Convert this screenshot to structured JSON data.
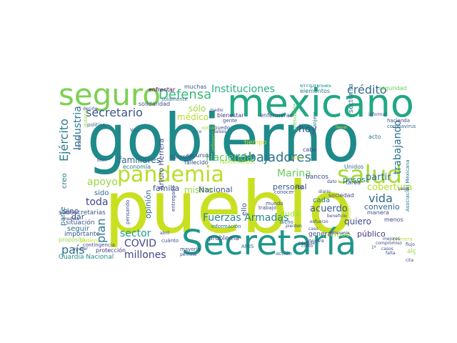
{
  "words": [
    {
      "text": "pueblo",
      "color": "#c8e020"
    },
    {
      "text": "gobierno",
      "color": "#1f8a8a"
    },
    {
      "text": "mexicano",
      "color": "#22a784"
    },
    {
      "text": "Secretaría",
      "color": "#1f968b"
    },
    {
      "text": "seguro",
      "color": "#7ad151"
    },
    {
      "text": "pandemia",
      "color": "#b8de29"
    },
    {
      "text": "salud",
      "color": "#a5db36"
    },
    {
      "text": "trabajadores",
      "color": "#2c728e"
    },
    {
      "text": "Defensa",
      "color": "#35b779"
    },
    {
      "text": "Instituciones",
      "color": "#29af7f"
    },
    {
      "text": "crédito",
      "color": "#31688e"
    },
    {
      "text": "secretario",
      "color": "#3b528b"
    },
    {
      "text": "Ejército",
      "color": "#2a788e"
    },
    {
      "text": "Marina",
      "color": "#6ccd5a"
    },
    {
      "text": "Hacienda",
      "color": "#5ec962"
    },
    {
      "text": "Fuerzas Armadas",
      "color": "#26828e"
    },
    {
      "text": "COVID",
      "color": "#3e4989"
    },
    {
      "text": "millones",
      "color": "#414487"
    },
    {
      "text": "país",
      "color": "#2d708e"
    },
    {
      "text": "plan",
      "color": "#2a788e"
    },
    {
      "text": "sector",
      "color": "#1f9e89"
    },
    {
      "text": "vida",
      "color": "#306a8e"
    },
    {
      "text": "trabajando",
      "color": "#2c728e"
    },
    {
      "text": "hoy",
      "color": "#3b528b"
    },
    {
      "text": "apoyo",
      "color": "#95d840"
    },
    {
      "text": "toda",
      "color": "#3f4788"
    },
    {
      "text": "acuerdo",
      "color": "#39568c"
    },
    {
      "text": "cobertura",
      "color": "#b5de2b"
    },
    {
      "text": "partir",
      "color": "#2e6e8e"
    },
    {
      "text": "Industria",
      "color": "#2a788e"
    },
    {
      "text": "sólo",
      "color": "#9fda3a"
    },
    {
      "text": "médico",
      "color": "#b8de29"
    },
    {
      "text": "familiares",
      "color": "#31688e"
    },
    {
      "text": "mismo",
      "color": "#95d840"
    },
    {
      "text": "familia",
      "color": "#3a538b"
    },
    {
      "text": "Nacional",
      "color": "#3b528b"
    },
    {
      "text": "personal",
      "color": "#375a8c"
    },
    {
      "text": "pesos",
      "color": "#26828e"
    },
    {
      "text": "quiero",
      "color": "#3e4989"
    },
    {
      "text": "público",
      "color": "#46337e"
    },
    {
      "text": "convenio",
      "color": "#32658e"
    },
    {
      "text": "incluso",
      "color": "#a8db34"
    },
    {
      "text": "duda",
      "color": "#a5db36"
    },
    {
      "text": "opinión",
      "color": "#33638d"
    },
    {
      "text": "dar",
      "color": "#3b528b"
    },
    {
      "text": "sido",
      "color": "#31688e"
    },
    {
      "text": "sino",
      "color": "#3e4989"
    },
    {
      "text": "creo",
      "color": "#2a788e"
    },
    {
      "text": "parte",
      "color": "#2c728e"
    },
    {
      "text": "seguir",
      "color": "#2d708e"
    },
    {
      "text": "situación",
      "color": "#3b528b"
    },
    {
      "text": "importante",
      "color": "#375a8c"
    },
    {
      "text": "subsecretarias",
      "color": "#39568c"
    },
    {
      "text": "Guardia Nacional",
      "color": "#228c8d"
    },
    {
      "text": "protección",
      "color": "#46337e"
    },
    {
      "text": "problema",
      "color": "#3e4989"
    },
    {
      "text": "Arturo Herrera",
      "color": "#3e4989"
    },
    {
      "text": "ello",
      "color": "#3b528b"
    },
    {
      "text": "cada",
      "color": "#2c728e"
    },
    {
      "text": "general",
      "color": "#3b528b"
    },
    {
      "text": "sector salud",
      "color": "#2c728e"
    },
    {
      "text": "bancos",
      "color": "#3e4989"
    },
    {
      "text": "empresas",
      "color": "#21918c"
    },
    {
      "text": "elementos",
      "color": "#2a788e"
    },
    {
      "text": "seguridad",
      "color": "#6ccd5a"
    },
    {
      "text": "muchas",
      "color": "#3b528b"
    },
    {
      "text": "enfrentar",
      "color": "#440154"
    },
    {
      "text": "solidaridad",
      "color": "#3e4989"
    },
    {
      "text": "recursos",
      "color": "#3e4989"
    },
    {
      "text": "bienestar",
      "color": "#443983"
    },
    {
      "text": "enfermeras",
      "color": "#3e4989"
    },
    {
      "text": "tiempo",
      "color": "#c8e020"
    },
    {
      "text": "decreto",
      "color": "#3b528b"
    },
    {
      "text": "fallecido",
      "color": "#3e4989"
    },
    {
      "text": "economía",
      "color": "#2a788e"
    },
    {
      "text": "vez",
      "color": "#2c728e"
    },
    {
      "text": "Unidos",
      "color": "#31688e"
    },
    {
      "text": "tarea",
      "color": "#3b528b"
    },
    {
      "text": "cabo",
      "color": "#3e4989"
    },
    {
      "text": "extranjero",
      "color": "#2a788e"
    },
    {
      "text": "acto",
      "color": "#2c728e"
    },
    {
      "text": "manera",
      "color": "#3b528b"
    },
    {
      "text": "menos",
      "color": "#3e4989"
    },
    {
      "text": "mundo",
      "color": "#3e4989"
    },
    {
      "text": "dicho",
      "color": "#31688e"
    },
    {
      "text": "conocer",
      "color": "#3e4989"
    },
    {
      "text": "sociedad",
      "color": "#3e4989"
    },
    {
      "text": "acción",
      "color": "#31688e"
    },
    {
      "text": "AMIS",
      "color": "#31688e"
    },
    {
      "text": "mayoría",
      "color": "#3e4989"
    },
    {
      "text": "información",
      "color": "#33638d"
    },
    {
      "text": "iba",
      "color": "#3e4989"
    },
    {
      "text": "trabajo",
      "color": "#3e4989"
    },
    {
      "text": "gente",
      "color": "#3e4989"
    },
    {
      "text": "puedo",
      "color": "#3b528b"
    },
    {
      "text": "cuánto",
      "color": "#3e4989"
    },
    {
      "text": "entregado",
      "color": "#3e4989"
    },
    {
      "text": "pensando",
      "color": "#3e4989"
    },
    {
      "text": "propósito",
      "color": "#95d840"
    },
    {
      "text": "Asociación Mexicana",
      "color": "#2a788e"
    },
    {
      "text": "coronavirus",
      "color": "#31688e"
    },
    {
      "text": "hacienda",
      "color": "#3e4989"
    },
    {
      "text": "nueva",
      "color": "#3e4989"
    },
    {
      "text": "presidente",
      "color": "#6ccd5a"
    },
    {
      "text": "fallecimientos",
      "color": "#a8db34"
    },
    {
      "text": "contingencia",
      "color": "#3e4989"
    },
    {
      "text": "política",
      "color": "#31688e"
    },
    {
      "text": "solamente",
      "color": "#2a788e"
    },
    {
      "text": "pudiera",
      "color": "#c8e020"
    },
    {
      "text": "cosas",
      "color": "#3e4989"
    },
    {
      "text": "refinería",
      "color": "#95d840"
    },
    {
      "text": "algún",
      "color": "#95d840"
    },
    {
      "text": "primera",
      "color": "#b5de2b"
    },
    {
      "text": "diario",
      "color": "#3e4989"
    },
    {
      "text": "costo",
      "color": "#3e4989"
    },
    {
      "text": "poder",
      "color": "#c8e020"
    },
    {
      "text": "hice",
      "color": "#2a788e"
    },
    {
      "text": "bien",
      "color": "#3e4989"
    },
    {
      "text": "social",
      "color": "#a5db36"
    },
    {
      "text": "esfuerzo",
      "color": "#3e4989"
    },
    {
      "text": "dato",
      "color": "#3e4989"
    },
    {
      "text": "medio",
      "color": "#3e4989"
    },
    {
      "text": "caso",
      "color": "#3e4989"
    },
    {
      "text": "abril",
      "color": "#3e4989"
    },
    {
      "text": "beneficio",
      "color": "#3e4989"
    },
    {
      "text": "compromiso",
      "color": "#3e4989"
    },
    {
      "text": "falta",
      "color": "#3e4989"
    },
    {
      "text": "decirle",
      "color": "#3e4989"
    },
    {
      "text": "países",
      "color": "#3e4989"
    },
    {
      "text": "permite",
      "color": "#3e4989"
    },
    {
      "text": "gusto",
      "color": "#c8e020"
    },
    {
      "text": "llevar",
      "color": "#c8e020"
    },
    {
      "text": "soberanía",
      "color": "#3e4989"
    },
    {
      "text": "pago",
      "color": "#3e4989"
    },
    {
      "text": "informar",
      "color": "#3e4989"
    },
    {
      "text": "medida",
      "color": "#3e4989"
    },
    {
      "text": "ayudar",
      "color": "#3e4989"
    },
    {
      "text": "pierden",
      "color": "#3e4989"
    },
    {
      "text": "pérdida",
      "color": "#3e4989"
    },
    {
      "text": "casos",
      "color": "#3e4989"
    },
    {
      "text": "mejores",
      "color": "#3e4989"
    },
    {
      "text": "distintas",
      "color": "#95d840"
    },
    {
      "text": "flujo",
      "color": "#3e4989"
    },
    {
      "text": "1º",
      "color": "#3e4989"
    },
    {
      "text": "cita",
      "color": "#3e4989"
    }
  ]
}
